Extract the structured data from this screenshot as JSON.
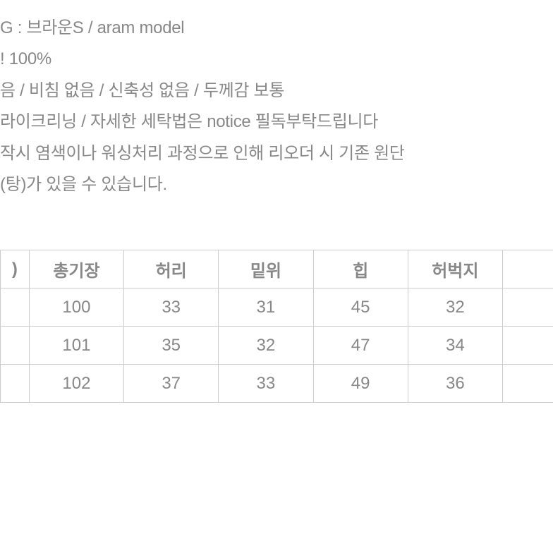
{
  "description": {
    "line1": "G : 브라운S / aram model",
    "line2": "! 100%",
    "line3": "음 / 비침 없음 / 신축성 없음 / 두께감 보통",
    "line4": "라이크리닝 / 자세한 세탁법은 notice 필독부탁드립니다",
    "line5": "작시 염색이나 워싱처리 과정으로 인해 리오더 시 기존 원단",
    "line6": "(탕)가 있을 수 있습니다."
  },
  "table": {
    "headers": {
      "label": ")",
      "col1": "총기장",
      "col2": "허리",
      "col3": "밑위",
      "col4": "힙",
      "col5": "허벅지"
    },
    "rows": [
      {
        "label": "",
        "v1": "100",
        "v2": "33",
        "v3": "31",
        "v4": "45",
        "v5": "32"
      },
      {
        "label": "",
        "v1": "101",
        "v2": "35",
        "v3": "32",
        "v4": "47",
        "v5": "34"
      },
      {
        "label": "",
        "v1": "102",
        "v2": "37",
        "v3": "33",
        "v4": "49",
        "v5": "36"
      }
    ]
  },
  "colors": {
    "text": "#888888",
    "border": "#cccccc",
    "background": "#ffffff"
  }
}
